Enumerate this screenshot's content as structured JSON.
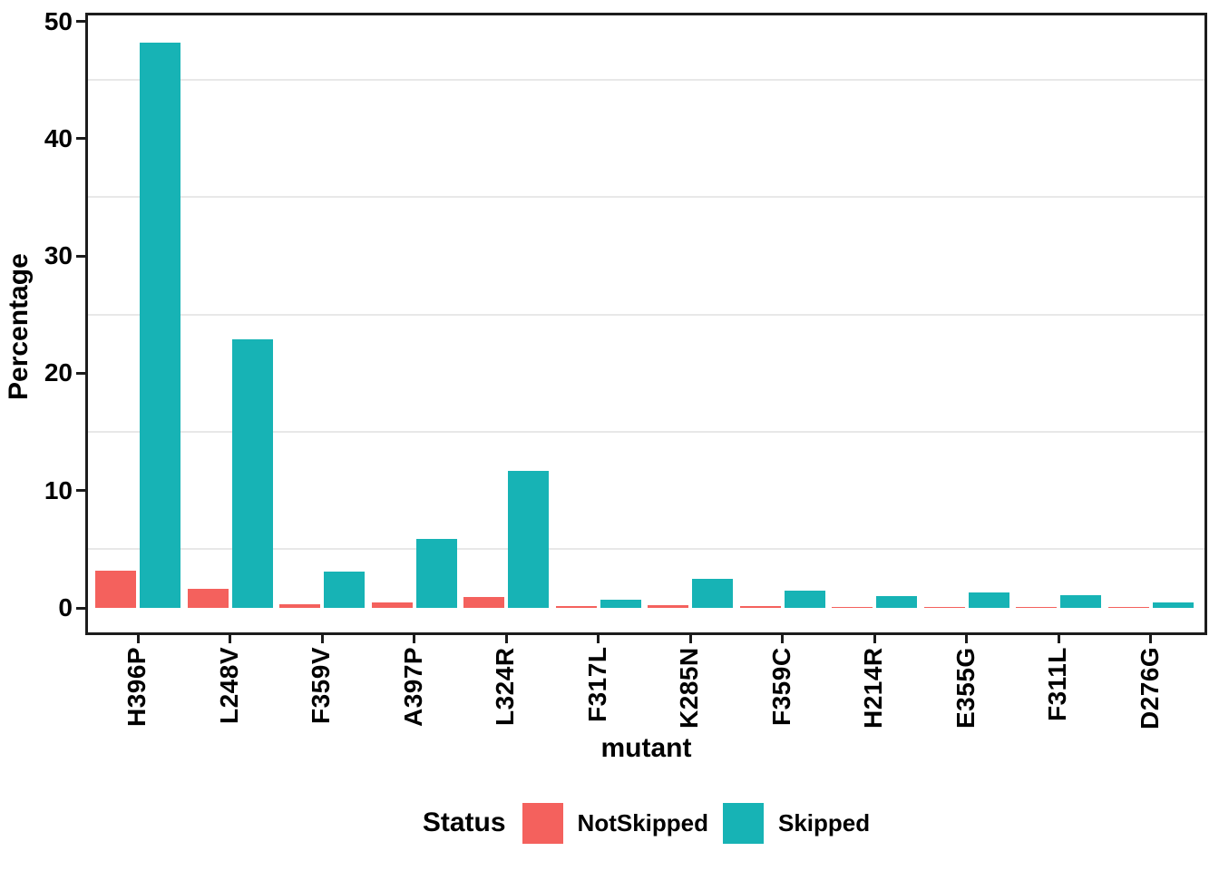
{
  "chart_data": {
    "type": "bar",
    "grouping": "dodged",
    "title": "",
    "xlabel": "mutant",
    "ylabel": "Percentage",
    "ylim": [
      0,
      50
    ],
    "y_major_ticks": [
      0,
      10,
      20,
      30,
      40,
      50
    ],
    "y_minor_gridlines": [
      5,
      15,
      25,
      35,
      45
    ],
    "grid": "minor-horizontal-only",
    "legend_position": "bottom",
    "categories": [
      "H396P",
      "L248V",
      "F359V",
      "A397P",
      "L324R",
      "F317L",
      "K285N",
      "F359C",
      "H214R",
      "E355G",
      "F311L",
      "D276G"
    ],
    "series": [
      {
        "name": "NotSkipped",
        "color": "#f4615d",
        "values": [
          3.2,
          1.6,
          0.3,
          0.45,
          0.9,
          0.15,
          0.2,
          0.15,
          0.1,
          0.1,
          0.1,
          0.05
        ]
      },
      {
        "name": "Skipped",
        "color": "#17b3b5",
        "values": [
          48.2,
          22.9,
          3.1,
          5.9,
          11.7,
          0.7,
          2.5,
          1.45,
          1.0,
          1.35,
          1.05,
          0.45
        ]
      }
    ],
    "legend": {
      "title": "Status",
      "entries": [
        {
          "label": "NotSkipped",
          "color": "#f4615d"
        },
        {
          "label": "Skipped",
          "color": "#17b3b5"
        }
      ]
    },
    "colors": {
      "panel_border": "#1c1c1c",
      "gridline": "#e8e8e8",
      "text": "#000000",
      "background": "#ffffff"
    }
  }
}
